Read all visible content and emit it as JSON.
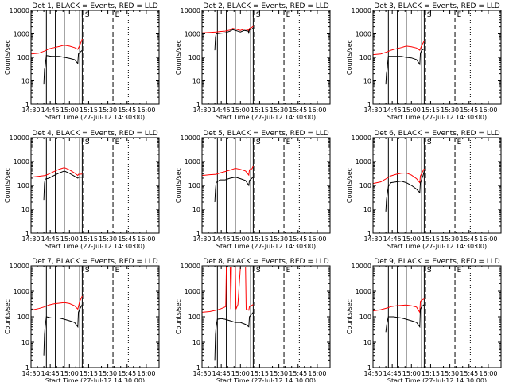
{
  "colors": {
    "events": "#000000",
    "lld": "#ff0000",
    "axes": "#000000"
  },
  "chart_data": {
    "type": "line",
    "grid_layout": "3x3",
    "x_tick_labels": [
      "14:30",
      "14:45",
      "15:00",
      "15:15",
      "15:30",
      "15:45",
      "16:00"
    ],
    "x_range_minutes": [
      0,
      100
    ],
    "y_tick_labels": [
      "1",
      "10",
      "100",
      "1000",
      "10000"
    ],
    "y_scale": "log",
    "ylim": [
      1,
      10000
    ],
    "ylabel": "Counts/sec",
    "xlabel": "Start Time (27-Jul-12 14:30:00)",
    "markers": {
      "solid": [
        12,
        19,
        26,
        38,
        40
      ],
      "dashed": [
        41,
        64
      ],
      "dotted": [
        76
      ],
      "labels": [
        {
          "x": 38.5,
          "text": "I"
        },
        {
          "x": 41.5,
          "text": "S"
        },
        {
          "x": 65,
          "text": "E"
        }
      ]
    },
    "panels": [
      {
        "title": "Det 1, BLACK = Events, RED = LLD",
        "events": [
          [
            10,
            7
          ],
          [
            10.5,
            30
          ],
          [
            11,
            40
          ],
          [
            12,
            120
          ],
          [
            16,
            110
          ],
          [
            22,
            110
          ],
          [
            26,
            100
          ],
          [
            30,
            90
          ],
          [
            34,
            80
          ],
          [
            36.5,
            55
          ],
          [
            37,
            140
          ],
          [
            38,
            160
          ],
          [
            40,
            200
          ]
        ],
        "lld": [
          [
            0,
            140
          ],
          [
            6,
            150
          ],
          [
            11,
            190
          ],
          [
            14,
            230
          ],
          [
            18,
            260
          ],
          [
            22,
            290
          ],
          [
            26,
            330
          ],
          [
            30,
            300
          ],
          [
            34,
            260
          ],
          [
            36.5,
            220
          ],
          [
            38,
            320
          ],
          [
            40,
            600
          ]
        ]
      },
      {
        "title": "Det 2, BLACK = Events, RED = LLD",
        "events": [
          [
            10,
            200
          ],
          [
            10.5,
            700
          ],
          [
            11,
            1000
          ],
          [
            14,
            1050
          ],
          [
            18,
            1100
          ],
          [
            22,
            1300
          ],
          [
            24,
            1500
          ],
          [
            27,
            1350
          ],
          [
            30,
            1200
          ],
          [
            33,
            1400
          ],
          [
            36,
            1300
          ],
          [
            36.5,
            1100
          ],
          [
            37,
            1500
          ],
          [
            39,
            1600
          ],
          [
            40,
            1800
          ]
        ],
        "lld": [
          [
            0,
            1100
          ],
          [
            6,
            1150
          ],
          [
            11,
            1200
          ],
          [
            14,
            1250
          ],
          [
            18,
            1300
          ],
          [
            22,
            1450
          ],
          [
            24,
            1700
          ],
          [
            27,
            1550
          ],
          [
            30,
            1400
          ],
          [
            33,
            1600
          ],
          [
            36,
            1500
          ],
          [
            36.5,
            1300
          ],
          [
            37,
            1700
          ],
          [
            39,
            1900
          ],
          [
            40,
            2100
          ]
        ]
      },
      {
        "title": "Det 3, BLACK = Events, RED = LLD",
        "events": [
          [
            10,
            7
          ],
          [
            10.5,
            20
          ],
          [
            11,
            30
          ],
          [
            12,
            110
          ],
          [
            16,
            110
          ],
          [
            22,
            110
          ],
          [
            26,
            100
          ],
          [
            30,
            95
          ],
          [
            34,
            80
          ],
          [
            36.5,
            50
          ],
          [
            37,
            150
          ],
          [
            38,
            200
          ],
          [
            40,
            230
          ]
        ],
        "lld": [
          [
            0,
            130
          ],
          [
            6,
            140
          ],
          [
            11,
            170
          ],
          [
            14,
            200
          ],
          [
            18,
            230
          ],
          [
            22,
            260
          ],
          [
            26,
            300
          ],
          [
            30,
            280
          ],
          [
            34,
            250
          ],
          [
            36.5,
            200
          ],
          [
            38,
            320
          ],
          [
            40,
            500
          ]
        ]
      },
      {
        "title": "Det 4, BLACK = Events, RED = LLD",
        "events": [
          [
            10,
            25
          ],
          [
            10.5,
            120
          ],
          [
            11,
            180
          ],
          [
            14,
            200
          ],
          [
            18,
            260
          ],
          [
            22,
            330
          ],
          [
            26,
            400
          ],
          [
            30,
            320
          ],
          [
            34,
            240
          ],
          [
            36.5,
            200
          ],
          [
            37,
            220
          ],
          [
            40,
            220
          ]
        ],
        "lld": [
          [
            0,
            220
          ],
          [
            6,
            240
          ],
          [
            11,
            260
          ],
          [
            14,
            300
          ],
          [
            18,
            380
          ],
          [
            22,
            480
          ],
          [
            26,
            560
          ],
          [
            30,
            450
          ],
          [
            34,
            330
          ],
          [
            36.5,
            260
          ],
          [
            37,
            290
          ],
          [
            40,
            300
          ]
        ]
      },
      {
        "title": "Det 5, BLACK = Events, RED = LLD",
        "events": [
          [
            10,
            20
          ],
          [
            10.5,
            70
          ],
          [
            11,
            130
          ],
          [
            14,
            170
          ],
          [
            18,
            170
          ],
          [
            22,
            200
          ],
          [
            26,
            220
          ],
          [
            30,
            190
          ],
          [
            34,
            160
          ],
          [
            36.5,
            100
          ],
          [
            37,
            160
          ],
          [
            39,
            200
          ],
          [
            40,
            230
          ]
        ],
        "lld": [
          [
            0,
            260
          ],
          [
            6,
            280
          ],
          [
            11,
            290
          ],
          [
            14,
            330
          ],
          [
            18,
            380
          ],
          [
            22,
            440
          ],
          [
            26,
            520
          ],
          [
            30,
            470
          ],
          [
            34,
            400
          ],
          [
            36.5,
            270
          ],
          [
            37,
            450
          ],
          [
            39,
            500
          ],
          [
            40,
            650
          ]
        ]
      },
      {
        "title": "Det 6, BLACK = Events, RED = LLD",
        "events": [
          [
            10,
            8
          ],
          [
            10.5,
            25
          ],
          [
            11,
            40
          ],
          [
            12,
            90
          ],
          [
            14,
            130
          ],
          [
            18,
            140
          ],
          [
            22,
            150
          ],
          [
            26,
            130
          ],
          [
            30,
            100
          ],
          [
            34,
            70
          ],
          [
            36.5,
            50
          ],
          [
            37,
            130
          ],
          [
            39,
            250
          ],
          [
            40,
            400
          ]
        ],
        "lld": [
          [
            0,
            120
          ],
          [
            6,
            140
          ],
          [
            11,
            200
          ],
          [
            14,
            250
          ],
          [
            18,
            290
          ],
          [
            22,
            320
          ],
          [
            26,
            330
          ],
          [
            30,
            270
          ],
          [
            34,
            190
          ],
          [
            36.5,
            130
          ],
          [
            37,
            250
          ],
          [
            39,
            400
          ],
          [
            40,
            500
          ]
        ]
      },
      {
        "title": "Det 7, BLACK = Events, RED = LLD",
        "events": [
          [
            10,
            3
          ],
          [
            10.5,
            20
          ],
          [
            11,
            40
          ],
          [
            12,
            100
          ],
          [
            16,
            90
          ],
          [
            22,
            90
          ],
          [
            26,
            80
          ],
          [
            30,
            70
          ],
          [
            34,
            60
          ],
          [
            36.5,
            40
          ],
          [
            37,
            150
          ],
          [
            38,
            200
          ],
          [
            40,
            300
          ]
        ],
        "lld": [
          [
            0,
            180
          ],
          [
            6,
            210
          ],
          [
            11,
            250
          ],
          [
            14,
            290
          ],
          [
            18,
            320
          ],
          [
            22,
            340
          ],
          [
            26,
            360
          ],
          [
            30,
            330
          ],
          [
            34,
            270
          ],
          [
            36.5,
            200
          ],
          [
            38,
            400
          ],
          [
            40,
            650
          ]
        ]
      },
      {
        "title": "Det 8, BLACK = Events, RED = LLD",
        "events": [
          [
            10,
            2
          ],
          [
            10.5,
            20
          ],
          [
            11,
            40
          ],
          [
            12,
            80
          ],
          [
            15,
            85
          ],
          [
            18,
            80
          ],
          [
            22,
            70
          ],
          [
            26,
            60
          ],
          [
            30,
            60
          ],
          [
            34,
            50
          ],
          [
            36.5,
            40
          ],
          [
            37,
            100
          ],
          [
            40,
            150
          ]
        ],
        "lld": [
          [
            0,
            150
          ],
          [
            6,
            160
          ],
          [
            11,
            180
          ],
          [
            14,
            200
          ],
          [
            18.5,
            250
          ],
          [
            19,
            9000
          ],
          [
            22,
            9000
          ],
          [
            22.5,
            200
          ],
          [
            23,
            9000
          ],
          [
            26,
            9000
          ],
          [
            26.5,
            200
          ],
          [
            28,
            300
          ],
          [
            30,
            9000
          ],
          [
            34,
            9000
          ],
          [
            34.5,
            200
          ],
          [
            36.5,
            180
          ],
          [
            37,
            250
          ],
          [
            40,
            300
          ]
        ]
      },
      {
        "title": "Det 9, BLACK = Events, RED = LLD",
        "events": [
          [
            10,
            25
          ],
          [
            10.5,
            40
          ],
          [
            11,
            60
          ],
          [
            12,
            100
          ],
          [
            16,
            100
          ],
          [
            22,
            90
          ],
          [
            26,
            80
          ],
          [
            30,
            70
          ],
          [
            34,
            60
          ],
          [
            36.5,
            40
          ],
          [
            37,
            200
          ],
          [
            38,
            250
          ],
          [
            40,
            300
          ]
        ],
        "lld": [
          [
            0,
            170
          ],
          [
            6,
            190
          ],
          [
            11,
            220
          ],
          [
            14,
            250
          ],
          [
            18,
            270
          ],
          [
            22,
            280
          ],
          [
            26,
            290
          ],
          [
            30,
            270
          ],
          [
            34,
            240
          ],
          [
            36.5,
            150
          ],
          [
            37,
            400
          ],
          [
            38,
            450
          ],
          [
            40,
            500
          ]
        ]
      }
    ]
  }
}
